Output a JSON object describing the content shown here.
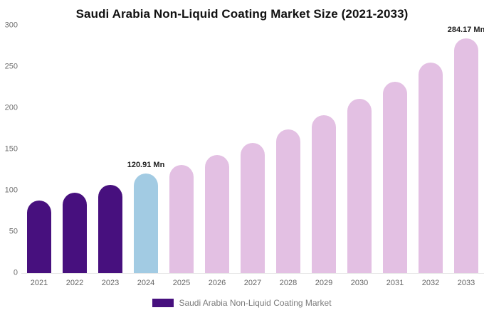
{
  "title": "Saudi Arabia Non-Liquid Coating Market Size (2021-2033)",
  "legend": {
    "label": "Saudi Arabia Non-Liquid Coating Market",
    "swatch_color": "#47107E"
  },
  "colors": {
    "historical": "#47107E",
    "current": "#A2CBE3",
    "forecast": "#E3C0E3",
    "axis_text": "#6e6e6e",
    "baseline": "#e7e7e7"
  },
  "chart_data": {
    "type": "bar",
    "title": "Saudi Arabia Non-Liquid Coating Market Size (2021-2033)",
    "xlabel": "",
    "ylabel": "",
    "ylim": [
      0,
      300
    ],
    "yticks": [
      0,
      50,
      100,
      150,
      200,
      250,
      300
    ],
    "grid": false,
    "legend_position": "bottom",
    "categories": [
      "2021",
      "2022",
      "2023",
      "2024",
      "2025",
      "2026",
      "2027",
      "2028",
      "2029",
      "2030",
      "2031",
      "2032",
      "2033"
    ],
    "values": [
      88,
      97,
      107,
      120.91,
      131,
      143,
      158,
      174,
      191,
      211,
      232,
      255,
      284.17
    ],
    "bar_colors": [
      "#47107E",
      "#47107E",
      "#47107E",
      "#A2CBE3",
      "#E3C0E3",
      "#E3C0E3",
      "#E3C0E3",
      "#E3C0E3",
      "#E3C0E3",
      "#E3C0E3",
      "#E3C0E3",
      "#E3C0E3",
      "#E3C0E3"
    ],
    "annotations": [
      {
        "index": 3,
        "text": "120.91 Mn"
      },
      {
        "index": 12,
        "text": "284.17 Mn"
      }
    ]
  }
}
